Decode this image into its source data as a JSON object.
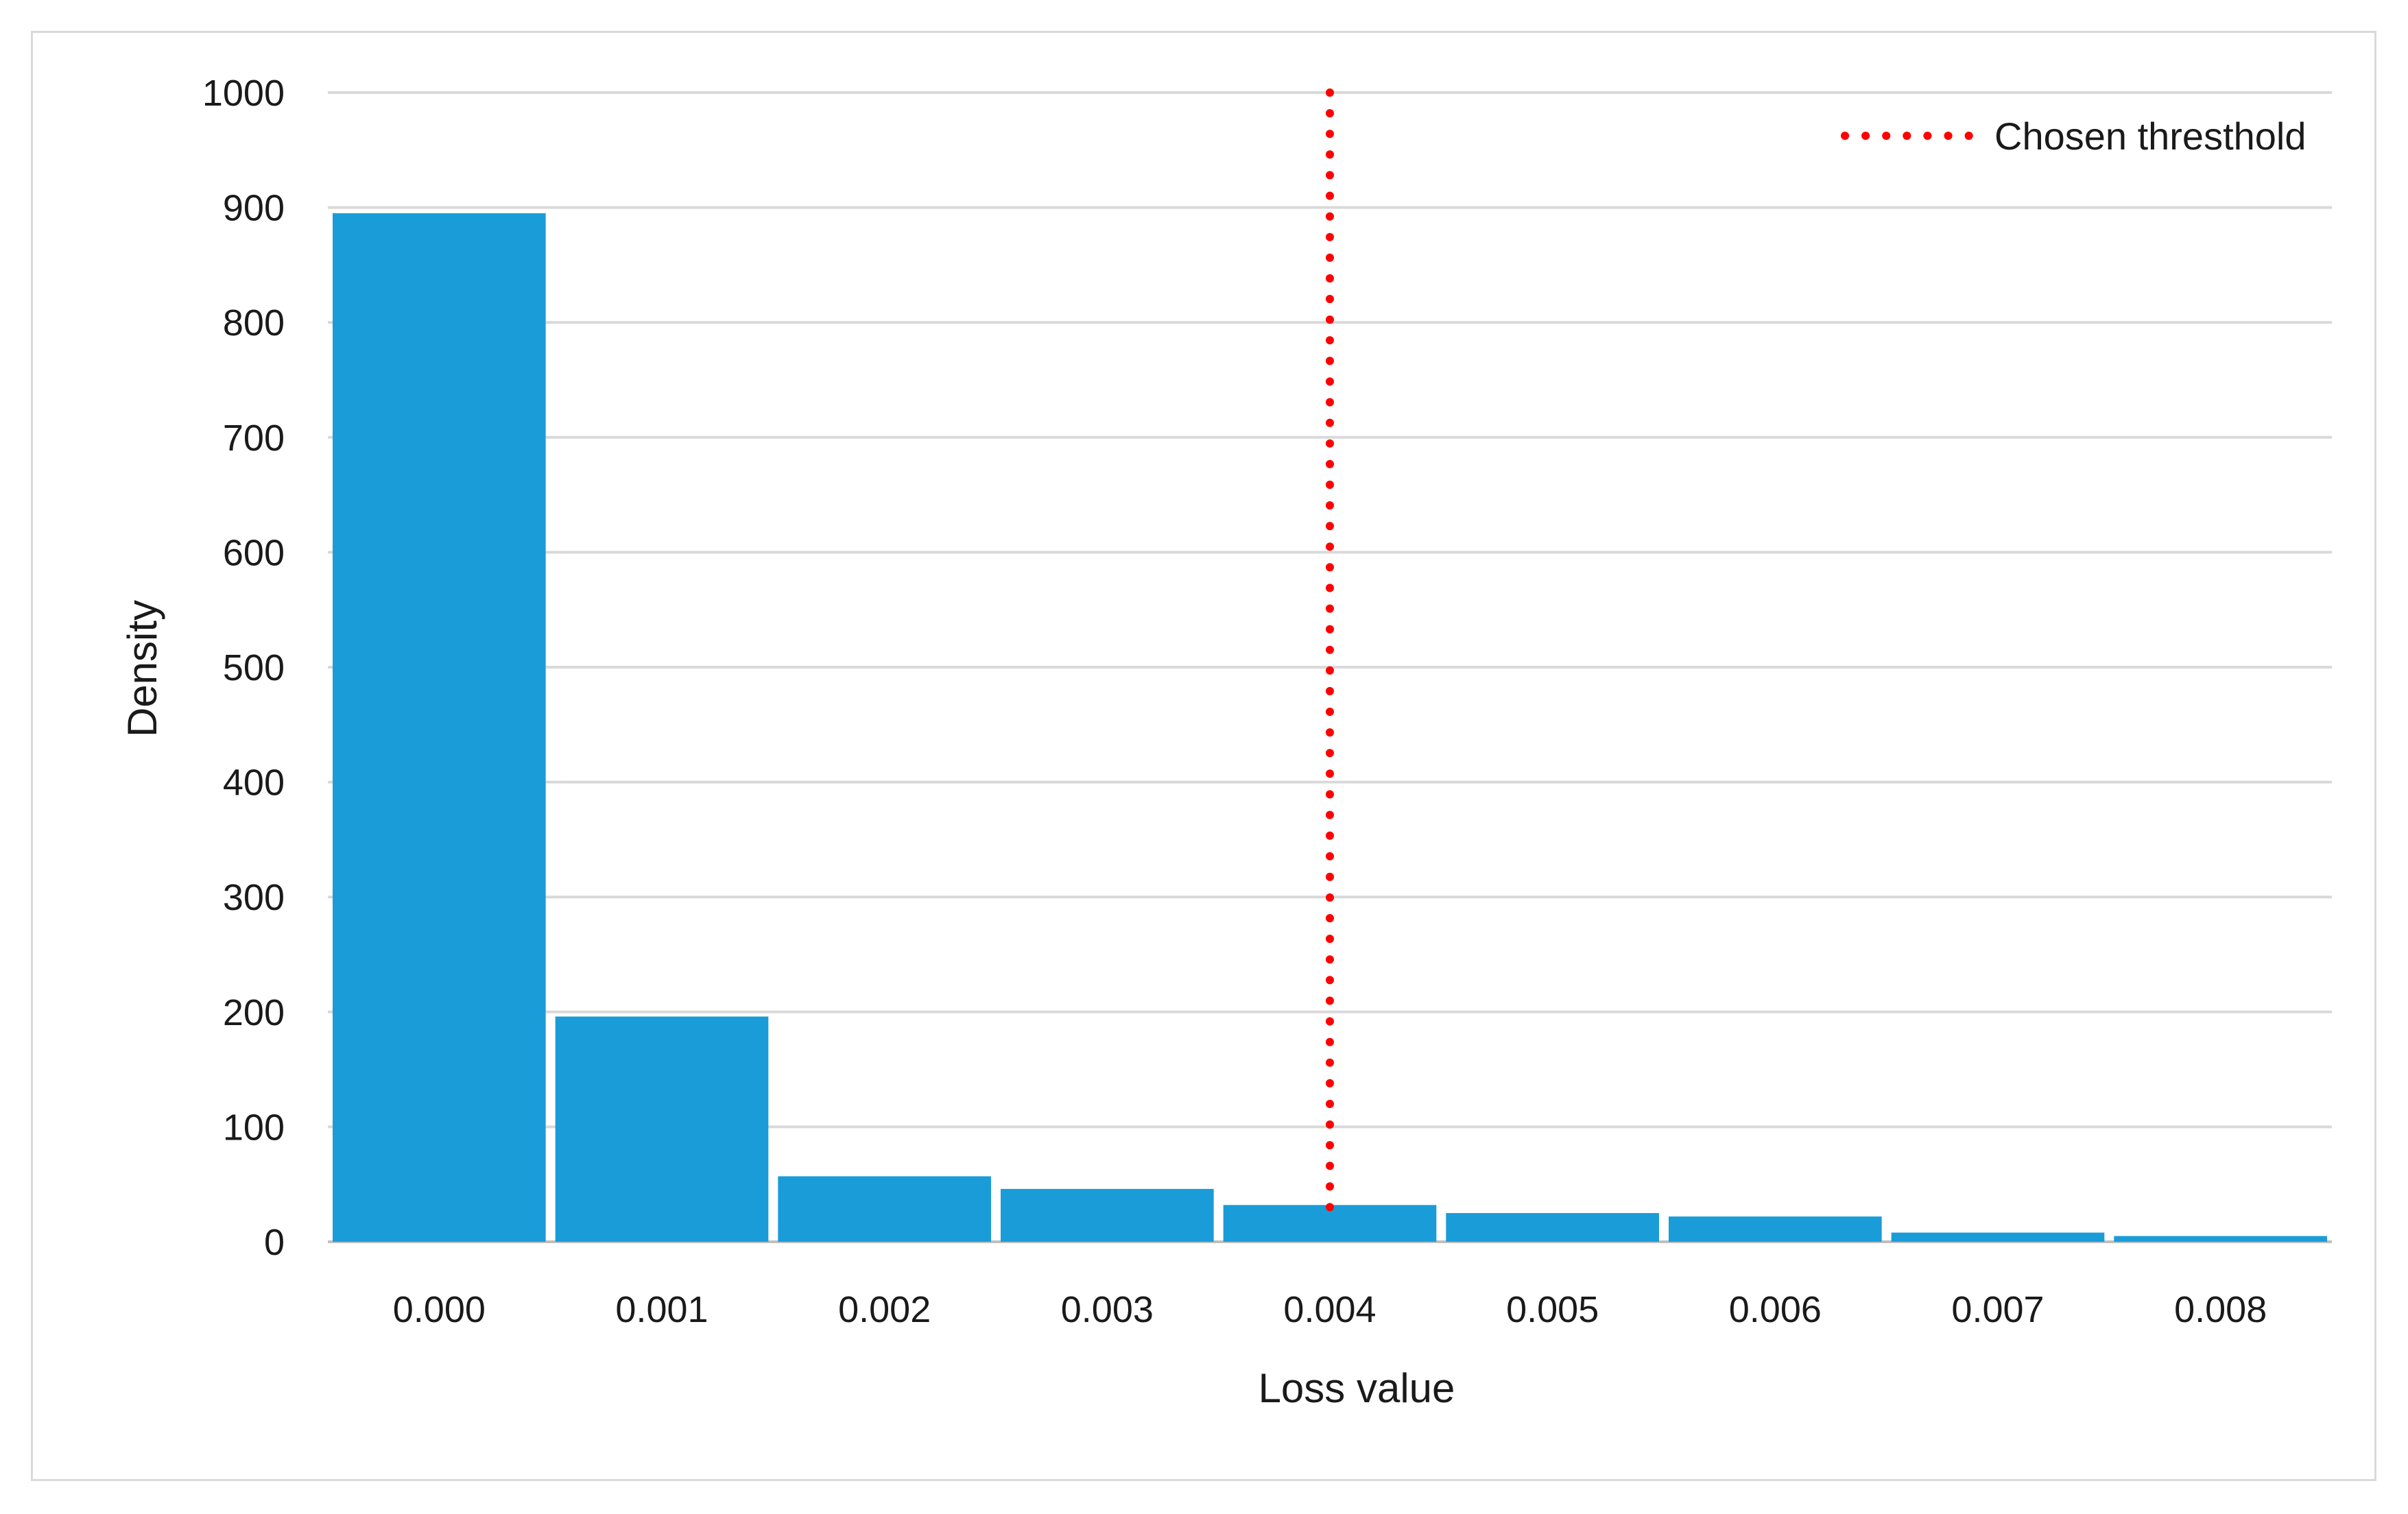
{
  "chart_data": {
    "type": "bar",
    "title": "",
    "xlabel": "Loss value",
    "ylabel": "Density",
    "categories": [
      "0.000",
      "0.001",
      "0.002",
      "0.003",
      "0.004",
      "0.005",
      "0.006",
      "0.007",
      "0.008"
    ],
    "values": [
      895,
      196,
      57,
      46,
      32,
      25,
      22,
      8,
      5
    ],
    "ylim": [
      0,
      1000
    ],
    "yticks": [
      "0",
      "100",
      "200",
      "300",
      "400",
      "500",
      "600",
      "700",
      "800",
      "900",
      "1000"
    ],
    "grid": "horizontal",
    "bar_color": "#1a9cd8",
    "threshold": {
      "label": "Chosen thresthold",
      "category": "0.004",
      "color": "#ff0000",
      "style": "dotted"
    },
    "legend_position": "top-right"
  }
}
